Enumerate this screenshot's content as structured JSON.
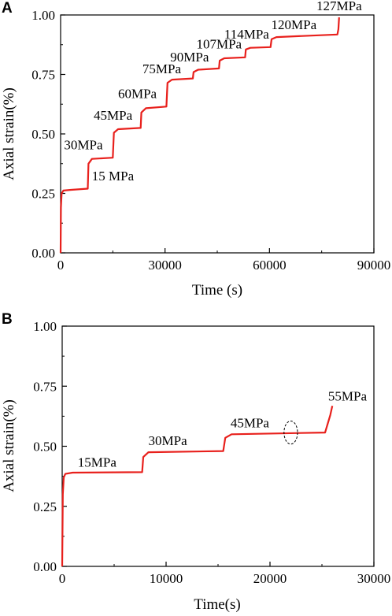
{
  "colors": {
    "series": "#e8201c",
    "axes": "#000000"
  },
  "chart_data": [
    {
      "panel": "A",
      "type": "line",
      "xlabel": "Time (s)",
      "ylabel": "Axial strain(%)",
      "xlim": [
        0,
        90000
      ],
      "ylim": [
        0,
        1.0
      ],
      "xticks": [
        0,
        30000,
        60000,
        90000
      ],
      "yticks": [
        0.0,
        0.25,
        0.5,
        0.75,
        1.0
      ],
      "xtick_labels": [
        "0",
        "30000",
        "60000",
        "90000"
      ],
      "ytick_labels": [
        "0.00",
        "0.25",
        "0.50",
        "0.75",
        "1.00"
      ],
      "series": [
        {
          "points": [
            [
              0,
              0
            ],
            [
              80,
              0.19
            ],
            [
              300,
              0.25
            ],
            [
              800,
              0.262
            ],
            [
              3000,
              0.265
            ],
            [
              7800,
              0.27
            ],
            [
              8000,
              0.375
            ],
            [
              9000,
              0.395
            ],
            [
              15000,
              0.4
            ],
            [
              15300,
              0.505
            ],
            [
              16500,
              0.52
            ],
            [
              23000,
              0.525
            ],
            [
              23200,
              0.59
            ],
            [
              24500,
              0.608
            ],
            [
              30400,
              0.615
            ],
            [
              30700,
              0.715
            ],
            [
              32000,
              0.728
            ],
            [
              38000,
              0.733
            ],
            [
              38200,
              0.76
            ],
            [
              39500,
              0.77
            ],
            [
              45500,
              0.775
            ],
            [
              45700,
              0.808
            ],
            [
              47000,
              0.818
            ],
            [
              53000,
              0.822
            ],
            [
              53200,
              0.855
            ],
            [
              54500,
              0.862
            ],
            [
              60300,
              0.865
            ],
            [
              60600,
              0.898
            ],
            [
              62000,
              0.907
            ],
            [
              79500,
              0.918
            ],
            [
              79800,
              0.94
            ],
            [
              80000,
              0.99
            ]
          ]
        }
      ],
      "annotations": [
        {
          "text": "15 MPa",
          "x": 9000,
          "y": 0.305
        },
        {
          "text": "30MPa",
          "x": 1000,
          "y": 0.435
        },
        {
          "text": "45MPa",
          "x": 9500,
          "y": 0.56
        },
        {
          "text": "60MPa",
          "x": 16500,
          "y": 0.65
        },
        {
          "text": "75MPa",
          "x": 23500,
          "y": 0.755
        },
        {
          "text": "90MPa",
          "x": 31500,
          "y": 0.805
        },
        {
          "text": "107MPa",
          "x": 39000,
          "y": 0.86
        },
        {
          "text": "114MPa",
          "x": 47000,
          "y": 0.9
        },
        {
          "text": "120MPa",
          "x": 60500,
          "y": 0.94
        },
        {
          "text": "127MPa",
          "x": 73500,
          "y": 1.02
        }
      ]
    },
    {
      "panel": "B",
      "type": "line",
      "xlabel": "Time(s)",
      "ylabel": "Axial strain(%)",
      "xlim": [
        0,
        30000
      ],
      "ylim": [
        0,
        1.0
      ],
      "xticks": [
        0,
        10000,
        20000,
        30000
      ],
      "yticks": [
        0.0,
        0.25,
        0.5,
        0.75,
        1.0
      ],
      "xtick_labels": [
        "0",
        "10000",
        "20000",
        "30000"
      ],
      "ytick_labels": [
        "0.00",
        "0.25",
        "0.50",
        "0.75",
        "1.00"
      ],
      "series": [
        {
          "points": [
            [
              0,
              0
            ],
            [
              60,
              0.3
            ],
            [
              150,
              0.37
            ],
            [
              300,
              0.385
            ],
            [
              1000,
              0.39
            ],
            [
              7700,
              0.392
            ],
            [
              7800,
              0.455
            ],
            [
              8300,
              0.475
            ],
            [
              15500,
              0.48
            ],
            [
              15700,
              0.535
            ],
            [
              16300,
              0.55
            ],
            [
              25300,
              0.557
            ],
            [
              25600,
              0.6
            ],
            [
              25800,
              0.63
            ],
            [
              26000,
              0.668
            ]
          ]
        }
      ],
      "annotations": [
        {
          "text": "15MPa",
          "x": 1500,
          "y": 0.415
        },
        {
          "text": "30MPa",
          "x": 8300,
          "y": 0.505
        },
        {
          "text": "45MPa",
          "x": 16200,
          "y": 0.578
        },
        {
          "text": "55MPa",
          "x": 25600,
          "y": 0.69
        }
      ],
      "ellipse": {
        "cx": 22000,
        "cy": 0.557,
        "rx": 650,
        "ry": 0.048
      }
    }
  ]
}
